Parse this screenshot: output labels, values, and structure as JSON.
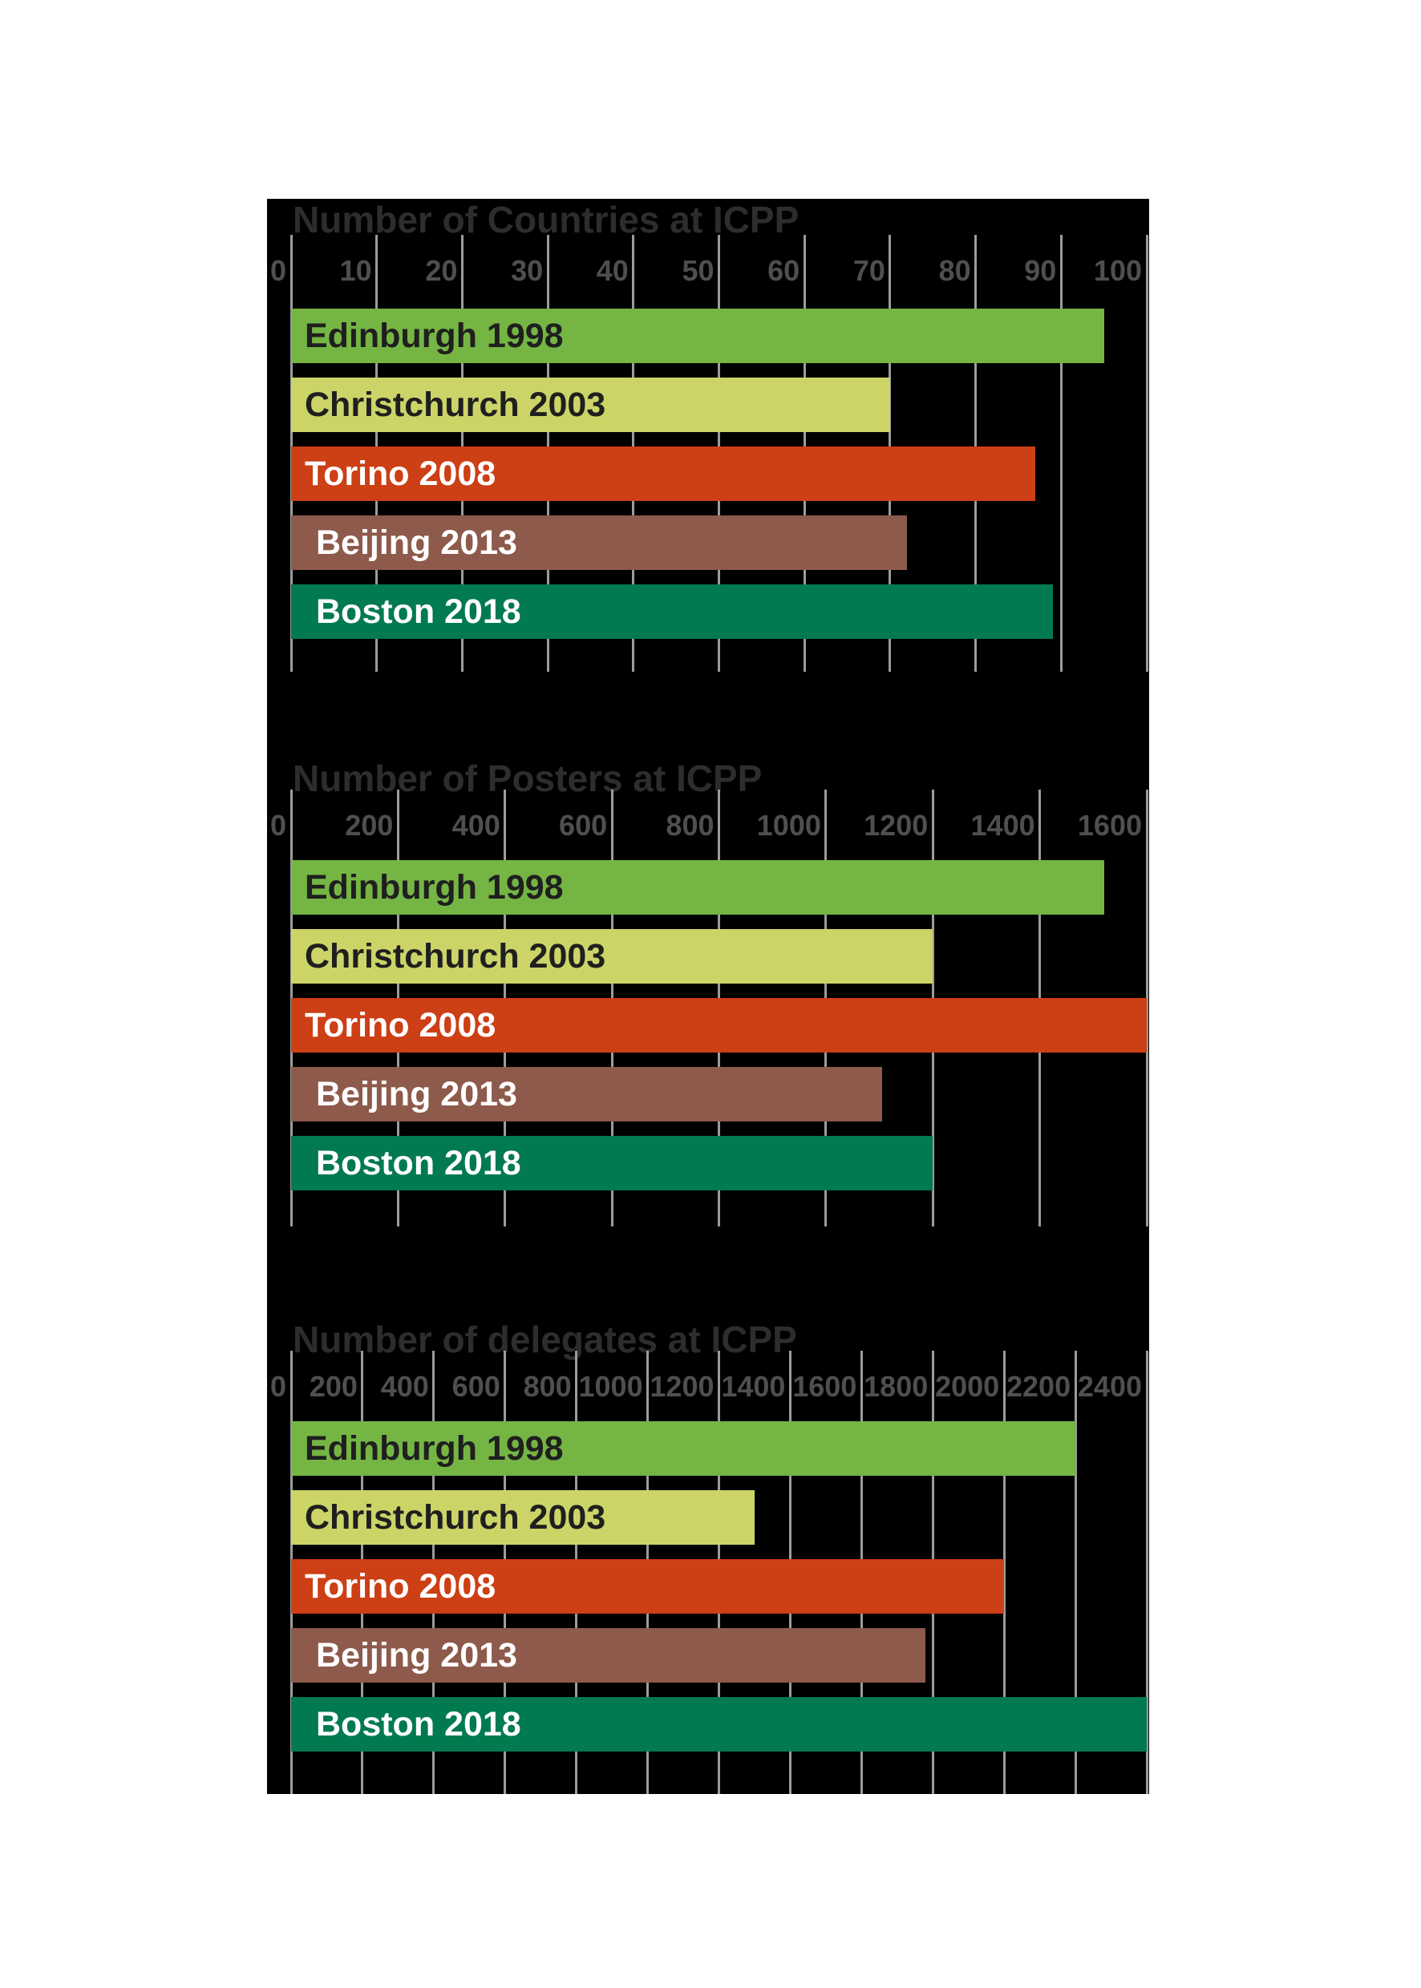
{
  "figure": {
    "name": "ICPP conference statistics figure"
  },
  "style": {
    "page_bg": "#ffffff",
    "figure_bg": "#000000",
    "title_color": "#2d2d2d",
    "axis_label_color": "#4f4f4f",
    "grid_color": "#9c9c9c",
    "bar_colors": [
      "#75b544",
      "#ccd468",
      "#cd3f15",
      "#8d5a4b",
      "#027a50"
    ],
    "bar_label_colors": [
      "#1f1f1f",
      "#1f1f1f",
      "#ffffff",
      "#ffffff",
      "#ffffff"
    ],
    "bar_label_indents": [
      17,
      17,
      17,
      31,
      31
    ]
  },
  "chart_data": [
    {
      "type": "bar",
      "title": "Number of Countries at ICPP",
      "categories": [
        "Edinburgh 1998",
        "Christchurch 2003",
        "Torino 2008",
        "Beijing 2013",
        "Boston 2018"
      ],
      "values": [
        95,
        70,
        87,
        72,
        89
      ],
      "xlabel": "",
      "ylabel": "",
      "xlim": [
        0,
        100
      ],
      "tick_step": 10,
      "tick_labels": [
        "0",
        "10",
        "20",
        "30",
        "40",
        "50",
        "60",
        "70",
        "80",
        "90",
        "100"
      ],
      "grid": true,
      "legend": "none"
    },
    {
      "type": "bar",
      "title": "Number of Posters at ICPP",
      "categories": [
        "Edinburgh 1998",
        "Christchurch 2003",
        "Torino 2008",
        "Beijing 2013",
        "Boston 2018"
      ],
      "values": [
        1520,
        1200,
        1600,
        1105,
        1200
      ],
      "xlabel": "",
      "ylabel": "",
      "xlim": [
        0,
        1600
      ],
      "tick_step": 200,
      "tick_labels": [
        "0",
        "200",
        "400",
        "600",
        "800",
        "1000",
        "1200",
        "1400",
        "1600"
      ],
      "grid": true,
      "legend": "none"
    },
    {
      "type": "bar",
      "title": "Number of delegates at ICPP",
      "categories": [
        "Edinburgh 1998",
        "Christchurch 2003",
        "Torino 2008",
        "Beijing 2013",
        "Boston 2018"
      ],
      "values": [
        2200,
        1300,
        2000,
        1780,
        2400
      ],
      "xlabel": "",
      "ylabel": "",
      "xlim": [
        0,
        2400
      ],
      "tick_step": 200,
      "tick_labels": [
        "0",
        "200",
        "400",
        "600",
        "800",
        "1000",
        "1200",
        "1400",
        "1600",
        "1800",
        "2000",
        "2200",
        "2400"
      ],
      "grid": true,
      "legend": "none"
    }
  ]
}
